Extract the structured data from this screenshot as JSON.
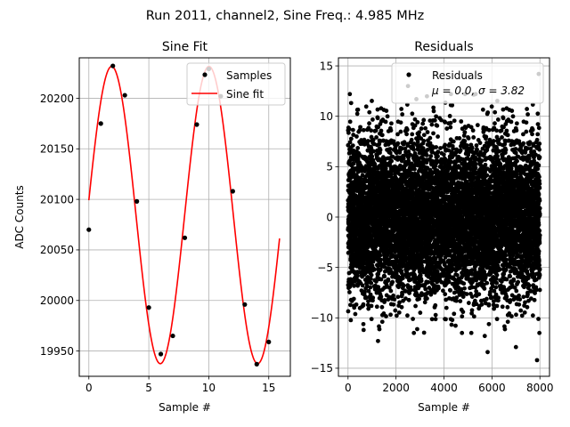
{
  "suptitle": "Run 2011, channel2, Sine Freq.: 4.985 MHz",
  "chart_data": [
    {
      "type": "scatter",
      "title": "Sine Fit",
      "xlabel": "Sample #",
      "ylabel": "ADC Counts",
      "xlim": [
        -0.8,
        16.8
      ],
      "ylim": [
        19925,
        20240
      ],
      "xticks": [
        0,
        5,
        10,
        15
      ],
      "yticks": [
        19950,
        20000,
        20050,
        20100,
        20150,
        20200
      ],
      "grid": true,
      "legend_position": "top-right",
      "series": [
        {
          "name": "Samples",
          "kind": "scatter",
          "color": "#000000",
          "x": [
            0,
            1,
            2,
            3,
            4,
            5,
            6,
            7,
            8,
            9,
            10,
            11,
            12,
            13,
            14,
            15
          ],
          "y": [
            20070,
            20175,
            20232,
            20203,
            20098,
            19993,
            19947,
            19965,
            20062,
            20174,
            20229,
            20202,
            20108,
            19996,
            19937,
            19959
          ]
        },
        {
          "name": "Sine fit",
          "kind": "line",
          "color": "#ff0000",
          "model": {
            "offset": 20084.5,
            "amplitude": 147,
            "phase": 0.1,
            "cycles_per_sample": 0.1232
          },
          "x_range": [
            0,
            15.9
          ]
        }
      ]
    },
    {
      "type": "scatter",
      "title": "Residuals",
      "xlabel": "Sample #",
      "ylabel": "",
      "xlim": [
        -400,
        8400
      ],
      "ylim": [
        -15.8,
        15.8
      ],
      "xticks": [
        0,
        2000,
        4000,
        6000,
        8000
      ],
      "yticks": [
        -15,
        -10,
        -5,
        0,
        5,
        10,
        15
      ],
      "grid": true,
      "legend_position": "top-right",
      "legend_label": "Residuals",
      "legend_stats": "μ = 0.0, σ = 3.82",
      "series": [
        {
          "name": "Residuals",
          "color": "#000000",
          "n_points": 8000,
          "mean": 0.0,
          "sigma": 3.82,
          "x_range": [
            0,
            7999
          ],
          "outliers": [
            {
              "x": 2500,
              "y": 13.0
            },
            {
              "x": 7950,
              "y": 14.2
            },
            {
              "x": 7880,
              "y": -14.2
            },
            {
              "x": 5820,
              "y": -13.4
            },
            {
              "x": 7000,
              "y": -12.9
            },
            {
              "x": 1250,
              "y": -12.3
            },
            {
              "x": 2850,
              "y": 11.7
            },
            {
              "x": 5700,
              "y": -11.8
            },
            {
              "x": 650,
              "y": -11.2
            }
          ]
        }
      ]
    }
  ]
}
